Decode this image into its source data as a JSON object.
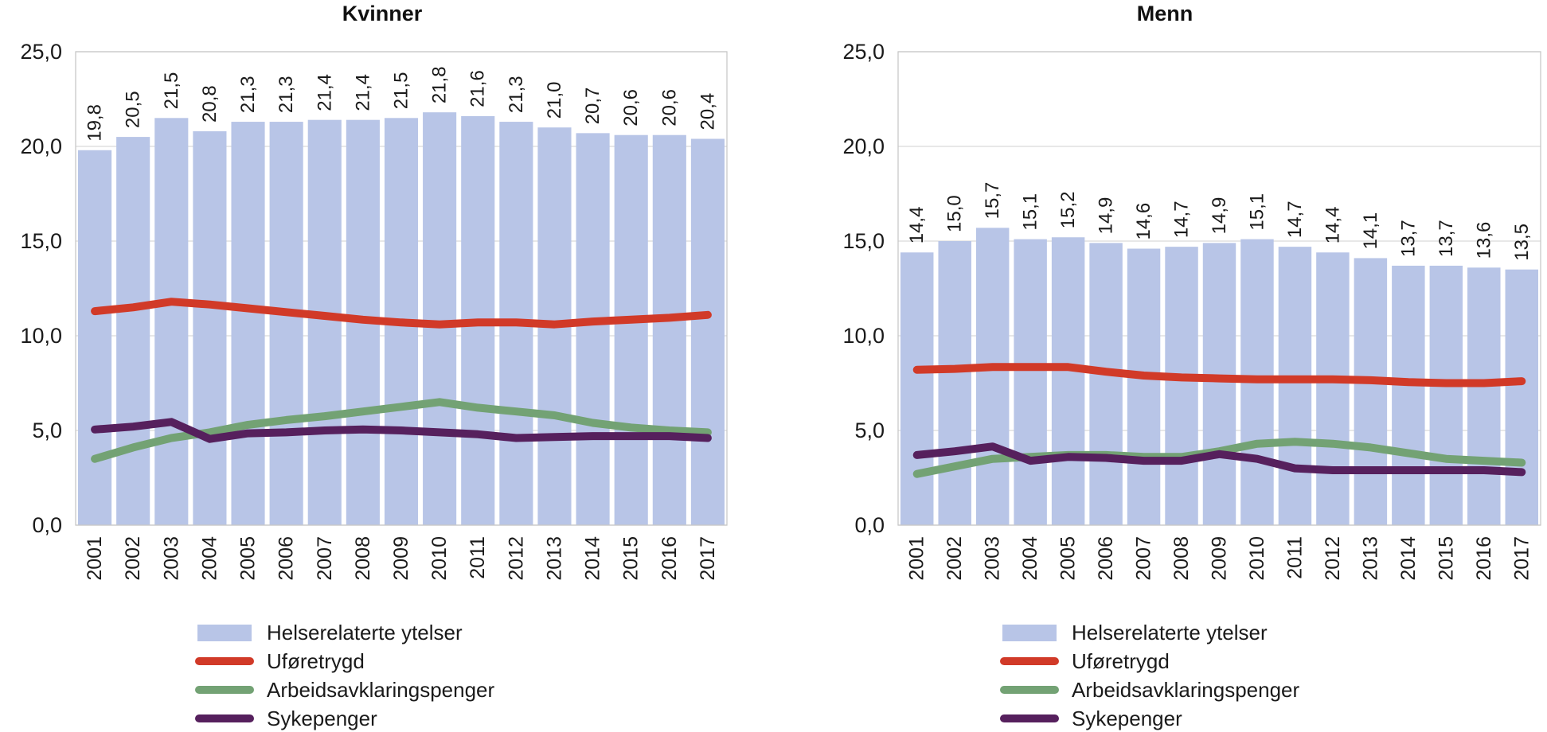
{
  "page": {
    "background": "#ffffff"
  },
  "colors": {
    "bar": "#b8c5e7",
    "uforetrygd": "#d13a28",
    "arbeidsavklaringspenger": "#73a274",
    "sykepenger": "#56205d",
    "grid": "#d9d9d9",
    "border": "#c8c8c8",
    "text": "#1a1a1a"
  },
  "axis": {
    "y_min": 0,
    "y_max": 25,
    "y_step": 5,
    "y_ticks": [
      "0,0",
      "5,0",
      "10,0",
      "15,0",
      "20,0",
      "25,0"
    ]
  },
  "legend": {
    "items": [
      {
        "color_key": "bar",
        "swatch": "rect",
        "label": "Helserelaterte ytelser"
      },
      {
        "color_key": "uforetrygd",
        "swatch": "line",
        "label": "Uføretrygd"
      },
      {
        "color_key": "arbeidsavklaringspenger",
        "swatch": "line",
        "label": "Arbeidsavklaringspenger"
      },
      {
        "color_key": "sykepenger",
        "swatch": "line",
        "label": "Sykepenger"
      }
    ]
  },
  "chart_data": [
    {
      "type": "bar",
      "title": "Kvinner",
      "ylim": [
        0,
        25
      ],
      "grid": true,
      "legend_position": "bottom",
      "categories": [
        "2001",
        "2002",
        "2003",
        "2004",
        "2005",
        "2006",
        "2007",
        "2008",
        "2009",
        "2010",
        "2011",
        "2012",
        "2013",
        "2014",
        "2015",
        "2016",
        "2017"
      ],
      "bars": {
        "name": "Helserelaterte ytelser",
        "color_key": "bar",
        "values": [
          19.8,
          20.5,
          21.5,
          20.8,
          21.3,
          21.3,
          21.4,
          21.4,
          21.5,
          21.8,
          21.6,
          21.3,
          21.0,
          20.7,
          20.6,
          20.6,
          20.4
        ],
        "value_labels": [
          "19,8",
          "20,5",
          "21,5",
          "20,8",
          "21,3",
          "21,3",
          "21,4",
          "21,4",
          "21,5",
          "21,8",
          "21,6",
          "21,3",
          "21,0",
          "20,7",
          "20,6",
          "20,6",
          "20,4"
        ]
      },
      "series": [
        {
          "name": "Uføretrygd",
          "color_key": "uforetrygd",
          "values": [
            11.3,
            11.5,
            11.8,
            11.65,
            11.45,
            11.25,
            11.05,
            10.85,
            10.7,
            10.6,
            10.7,
            10.7,
            10.6,
            10.75,
            10.85,
            10.95,
            11.1
          ]
        },
        {
          "name": "Arbeidsavklaringspenger",
          "color_key": "arbeidsavklaringspenger",
          "values": [
            3.5,
            4.1,
            4.6,
            4.9,
            5.3,
            5.55,
            5.75,
            6.0,
            6.25,
            6.5,
            6.2,
            6.0,
            5.8,
            5.4,
            5.15,
            5.0,
            4.9
          ]
        },
        {
          "name": "Sykepenger",
          "color_key": "sykepenger",
          "values": [
            5.05,
            5.2,
            5.45,
            4.55,
            4.85,
            4.9,
            5.0,
            5.05,
            5.0,
            4.9,
            4.8,
            4.6,
            4.65,
            4.7,
            4.7,
            4.7,
            4.6
          ]
        }
      ]
    },
    {
      "type": "bar",
      "title": "Menn",
      "ylim": [
        0,
        25
      ],
      "grid": true,
      "legend_position": "bottom",
      "categories": [
        "2001",
        "2002",
        "2003",
        "2004",
        "2005",
        "2006",
        "2007",
        "2008",
        "2009",
        "2010",
        "2011",
        "2012",
        "2013",
        "2014",
        "2015",
        "2016",
        "2017"
      ],
      "bars": {
        "name": "Helserelaterte ytelser",
        "color_key": "bar",
        "values": [
          14.4,
          15.0,
          15.7,
          15.1,
          15.2,
          14.9,
          14.6,
          14.7,
          14.9,
          15.1,
          14.7,
          14.4,
          14.1,
          13.7,
          13.7,
          13.6,
          13.5
        ],
        "value_labels": [
          "14,4",
          "15,0",
          "15,7",
          "15,1",
          "15,2",
          "14,9",
          "14,6",
          "14,7",
          "14,9",
          "15,1",
          "14,7",
          "14,4",
          "14,1",
          "13,7",
          "13,7",
          "13,6",
          "13,5"
        ]
      },
      "series": [
        {
          "name": "Uføretrygd",
          "color_key": "uforetrygd",
          "values": [
            8.2,
            8.25,
            8.35,
            8.35,
            8.35,
            8.1,
            7.9,
            7.8,
            7.75,
            7.7,
            7.7,
            7.7,
            7.65,
            7.55,
            7.5,
            7.5,
            7.6
          ]
        },
        {
          "name": "Arbeidsavklaringspenger",
          "color_key": "arbeidsavklaringspenger",
          "values": [
            2.7,
            3.1,
            3.5,
            3.6,
            3.7,
            3.7,
            3.6,
            3.6,
            3.9,
            4.3,
            4.4,
            4.3,
            4.1,
            3.8,
            3.5,
            3.4,
            3.3
          ]
        },
        {
          "name": "Sykepenger",
          "color_key": "sykepenger",
          "values": [
            3.7,
            3.9,
            4.15,
            3.4,
            3.6,
            3.55,
            3.4,
            3.4,
            3.75,
            3.5,
            3.0,
            2.9,
            2.9,
            2.9,
            2.9,
            2.9,
            2.8
          ]
        }
      ]
    }
  ]
}
